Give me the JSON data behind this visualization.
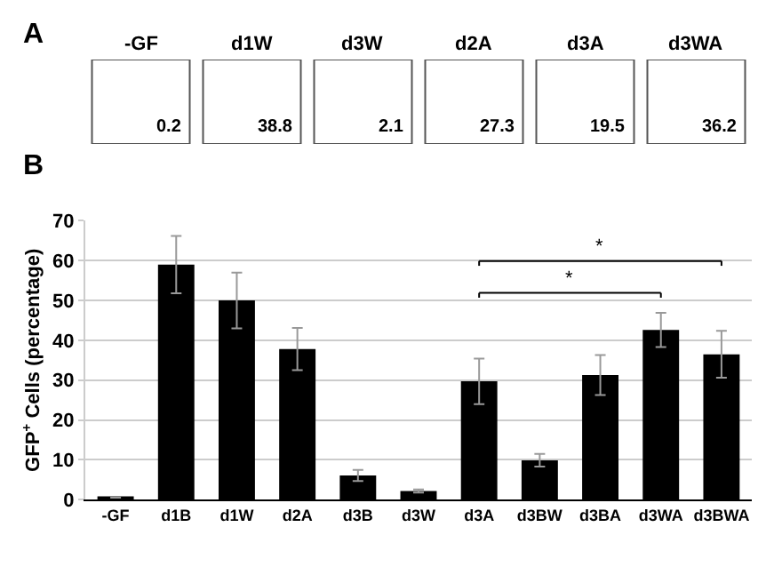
{
  "chart_data": [
    {
      "type": "other",
      "title": "A",
      "categories": [
        "-GF",
        "d1W",
        "d3W",
        "d2A",
        "d3A",
        "d3WA"
      ],
      "values": [
        0.2,
        38.8,
        2.1,
        27.3,
        19.5,
        36.2
      ],
      "data_labels": true
    },
    {
      "type": "bar",
      "title": "B",
      "ylabel": "GFP$^{+}$ Cells (percentage)",
      "categories": [
        "-GF",
        "d1B",
        "d1W",
        "d2A",
        "d3B",
        "d3W",
        "d3A",
        "d3BW",
        "d3BA",
        "d3WA",
        "d3BWA"
      ],
      "values": [
        0.5,
        59.0,
        50.0,
        37.8,
        6.1,
        2.2,
        29.7,
        9.9,
        31.3,
        42.6,
        36.5
      ],
      "errors": [
        null,
        7.2,
        7.0,
        5.3,
        1.4,
        0.4,
        5.7,
        1.6,
        5.0,
        4.3,
        5.9
      ],
      "color": "#000000",
      "ylim": [
        0,
        70
      ],
      "yticks": [
        0,
        10,
        20,
        30,
        40,
        50,
        60,
        70
      ],
      "grid": "y",
      "annotations": [
        "*",
        "*"
      ]
    }
  ]
}
